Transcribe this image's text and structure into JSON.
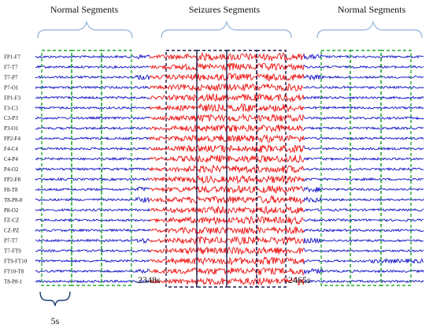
{
  "segments": {
    "normal_left_title": "Normal Segments",
    "seizure_title": "Seizures Segments",
    "normal_right_title": "Normal Segments"
  },
  "channels": [
    "FP1-F7",
    "F7-T7",
    "T7-P7",
    "P7-O1",
    "FP1-F3",
    "F3-C3",
    "C3-P3",
    "P3-O1",
    "FP2-F4",
    "F4-C4",
    "C4-P4",
    "P4-O2",
    "FP2-F8",
    "F8-T8",
    "T8-P8-0",
    "P8-O2",
    "FZ-CZ",
    "CZ-PZ",
    "P7-T7",
    "T7-FT9",
    "FT9-FT10",
    "FT10-T8",
    "T8-P8-1"
  ],
  "time_markers": {
    "seizure_start": "2348s",
    "seizure_end": "2465s"
  },
  "window_length_label": "5s",
  "colors": {
    "normal_signal": "#1010c8",
    "seizure_signal": "#ee1111",
    "normal_window": "#22aa33",
    "seizure_window": "#1a1a4a",
    "brace": "#8fb0d8"
  }
}
